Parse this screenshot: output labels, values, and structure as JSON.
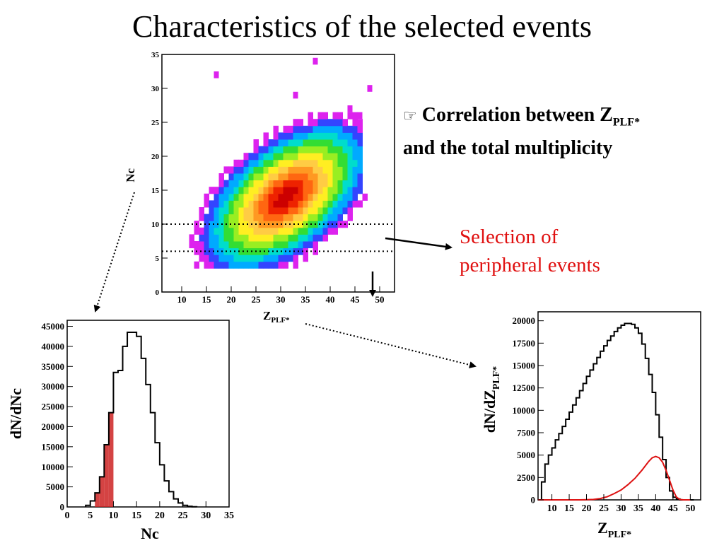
{
  "slide": {
    "title": "Characteristics of the selected events",
    "bullet_icon": "pointing-hand-icon",
    "bullet_text_1": "Correlation between Z",
    "bullet_sub": "PLF*",
    "bullet_text_2": "and the total multiplicity",
    "selection_line1": "Selection of",
    "selection_line2": "peripheral events",
    "accent_red": "#e01010"
  },
  "chart_data": [
    {
      "type": "heatmap",
      "id": "correlation",
      "xlabel_main": "Z",
      "xlabel_sub": "PLF*",
      "ylabel": "Nc",
      "xlim": [
        6,
        53
      ],
      "ylim": [
        0,
        35
      ],
      "xticks": [
        10,
        15,
        20,
        25,
        30,
        35,
        40,
        45,
        50
      ],
      "yticks": [
        0,
        5,
        10,
        15,
        20,
        25,
        30,
        35
      ],
      "selection_lines_nc": [
        6,
        10
      ],
      "peak": {
        "x": 31,
        "y": 14
      },
      "colorscale": "rainbow (magenta-blue-cyan-green-yellow-orange-red)"
    },
    {
      "type": "bar",
      "id": "nc-distribution",
      "xlabel": "Nc",
      "ylabel": "dN/dNc",
      "xlim": [
        0,
        35
      ],
      "ylim": [
        0,
        46500
      ],
      "xticks": [
        0,
        5,
        10,
        15,
        20,
        25,
        30,
        35
      ],
      "yticks": [
        0,
        5000,
        10000,
        15000,
        20000,
        25000,
        30000,
        35000,
        40000,
        45000
      ],
      "x": [
        4,
        5,
        6,
        7,
        8,
        9,
        10,
        11,
        12,
        13,
        14,
        15,
        16,
        17,
        18,
        19,
        20,
        21,
        22,
        23,
        24,
        25,
        26,
        27
      ],
      "values": [
        400,
        1500,
        3500,
        7500,
        15500,
        23500,
        33500,
        34000,
        40000,
        43500,
        43500,
        42500,
        37000,
        30500,
        23500,
        16000,
        10500,
        6500,
        3800,
        2000,
        1000,
        400,
        150,
        50
      ],
      "highlight_range": [
        6,
        10
      ],
      "highlight_color": "#cc2222"
    },
    {
      "type": "line",
      "id": "zplf-distribution",
      "xlabel_main": "Z",
      "xlabel_sub": "PLF*",
      "ylabel_main": "dN/dZ",
      "ylabel_sub": "PLF*",
      "xlim": [
        6,
        53
      ],
      "ylim": [
        0,
        21000
      ],
      "xticks": [
        10,
        15,
        20,
        25,
        30,
        35,
        40,
        45,
        50
      ],
      "yticks": [
        0,
        2500,
        5000,
        7500,
        10000,
        12500,
        15000,
        17500,
        20000
      ],
      "series": [
        {
          "color": "#000000",
          "x": [
            6,
            7,
            8,
            9,
            10,
            11,
            12,
            13,
            14,
            15,
            16,
            17,
            18,
            19,
            20,
            21,
            22,
            23,
            24,
            25,
            26,
            27,
            28,
            29,
            30,
            31,
            32,
            33,
            34,
            35,
            36,
            37,
            38,
            39,
            40,
            41,
            42,
            43,
            44,
            45,
            46,
            47,
            48,
            49,
            50
          ],
          "values": [
            0,
            2000,
            4000,
            5000,
            5800,
            6700,
            7400,
            8200,
            9000,
            9800,
            10600,
            11400,
            12200,
            13000,
            13800,
            14500,
            15200,
            15900,
            16600,
            17200,
            17800,
            18300,
            18800,
            19200,
            19500,
            19700,
            19700,
            19600,
            19200,
            18600,
            17400,
            15800,
            14000,
            12000,
            9500,
            7000,
            4500,
            2500,
            1000,
            300,
            100,
            0,
            0,
            0,
            0
          ]
        },
        {
          "color": "#dd1111",
          "x": [
            6,
            8,
            10,
            12,
            14,
            16,
            18,
            20,
            22,
            24,
            26,
            28,
            30,
            32,
            34,
            36,
            37,
            38,
            39,
            40,
            41,
            42,
            43,
            44,
            45,
            46,
            47,
            48,
            49,
            50
          ],
          "values": [
            0,
            0,
            0,
            0,
            0,
            0,
            0,
            20,
            50,
            150,
            350,
            700,
            1100,
            1700,
            2400,
            3300,
            3800,
            4300,
            4700,
            4850,
            4700,
            4200,
            3300,
            2200,
            1100,
            300,
            50,
            0,
            0,
            0
          ]
        }
      ]
    }
  ]
}
